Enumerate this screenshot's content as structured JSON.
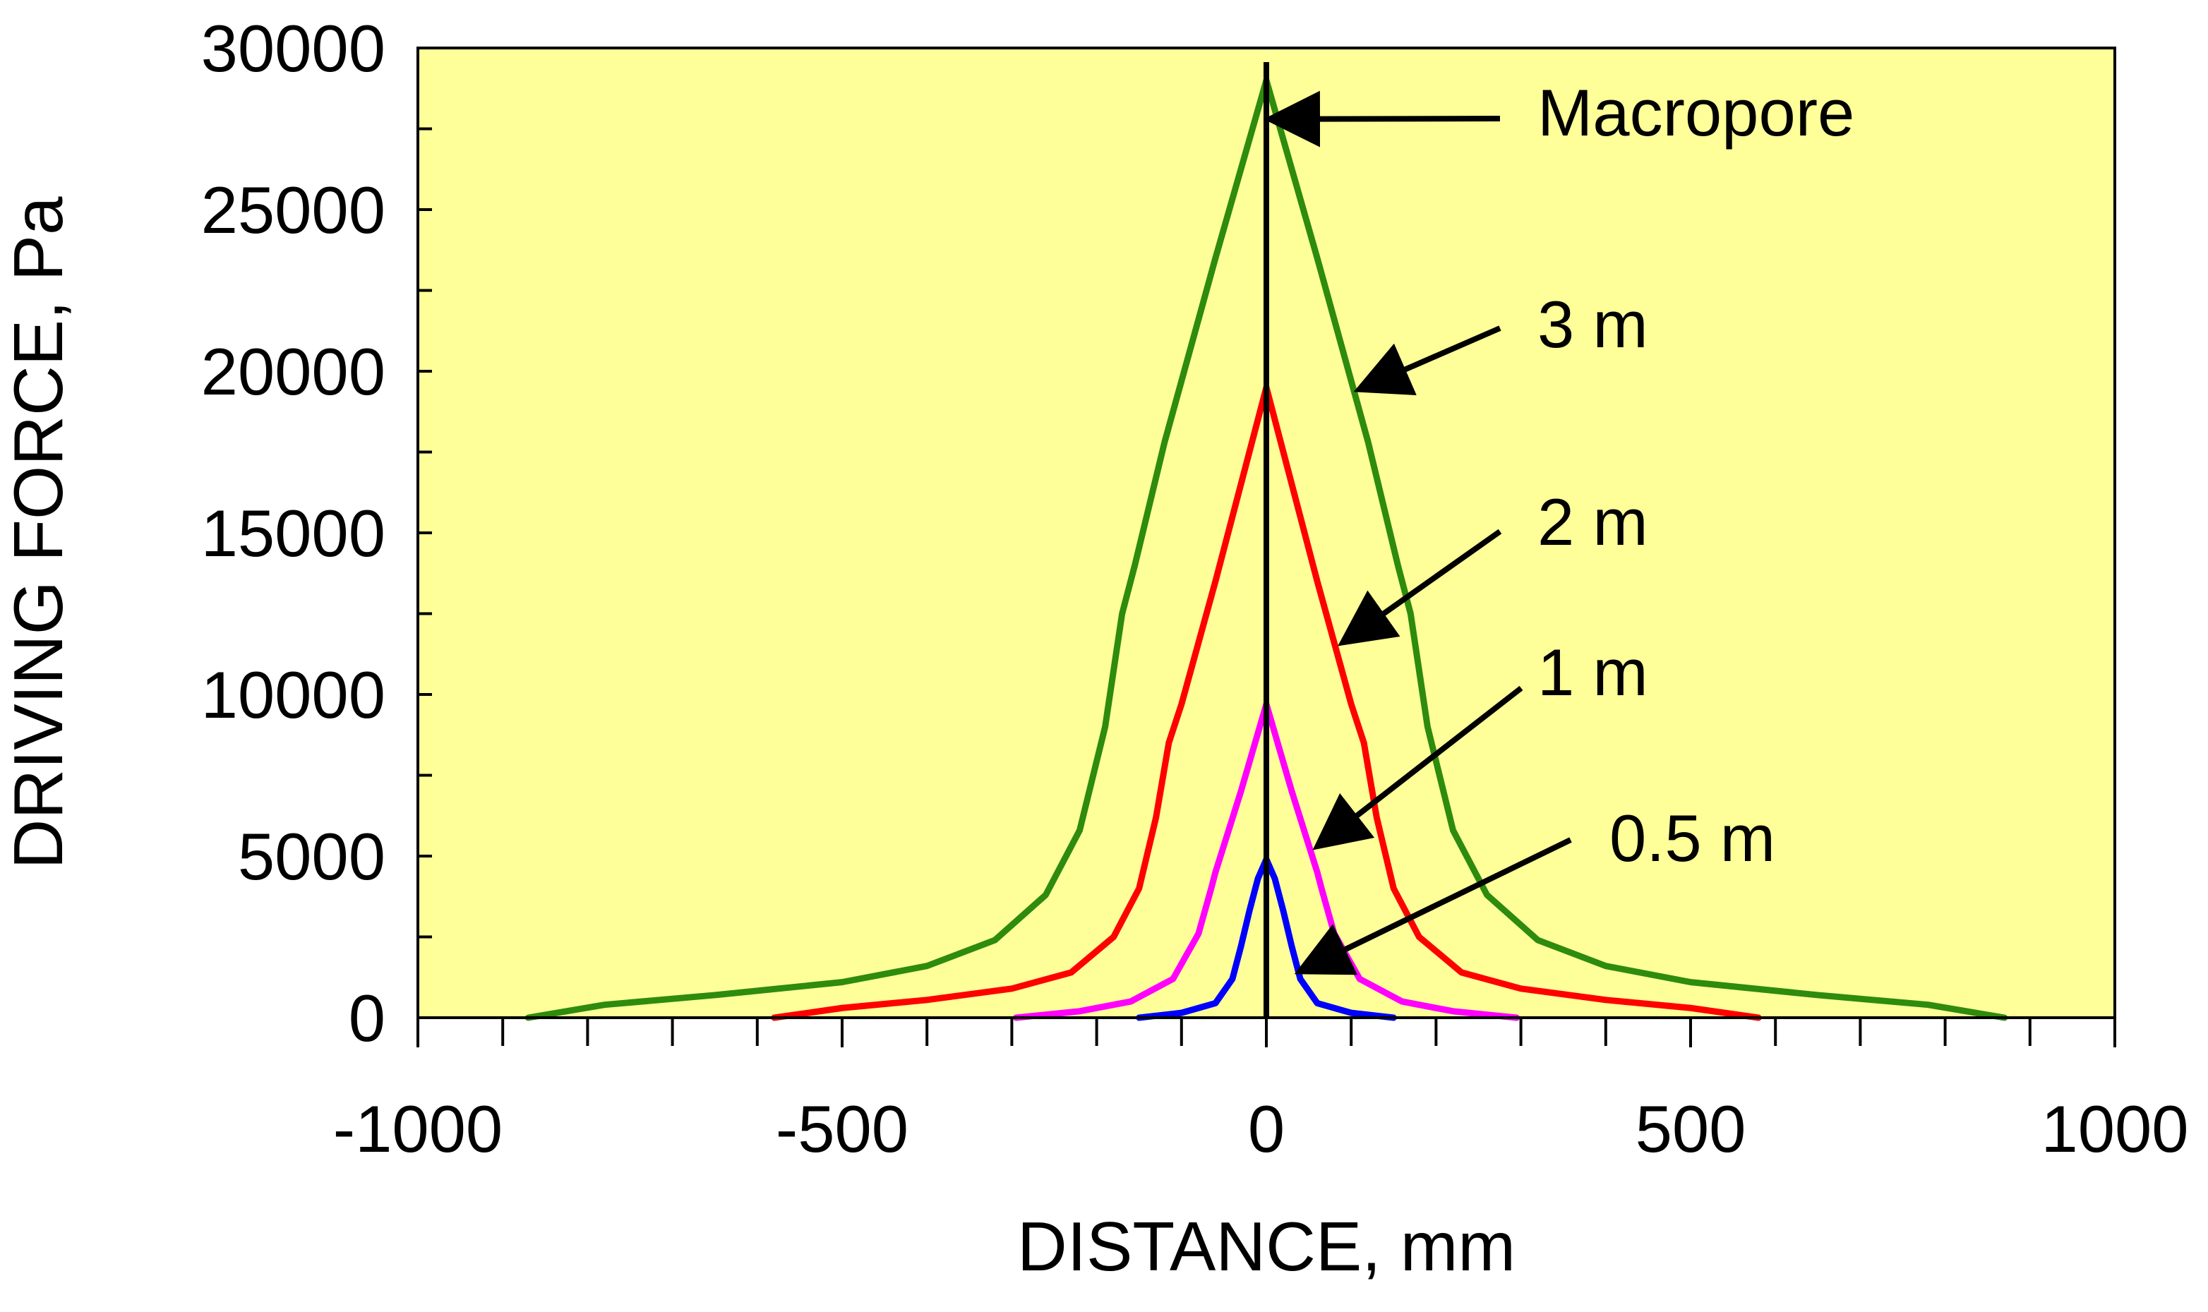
{
  "chart_data": {
    "type": "line",
    "title": "",
    "xlabel": "DISTANCE, mm",
    "ylabel": "DRIVING FORCE, Pa",
    "xlim": [
      -1000,
      1000
    ],
    "ylim": [
      0,
      30000
    ],
    "x_ticks": [
      -1000,
      -500,
      0,
      500,
      1000
    ],
    "y_ticks": [
      0,
      5000,
      10000,
      15000,
      20000,
      25000,
      30000
    ],
    "plot_background": "#FFFF99",
    "grid": false,
    "series": [
      {
        "name": "3 m",
        "color": "#2E8B0E",
        "x": [
          -870,
          -780,
          -650,
          -500,
          -400,
          -320,
          -260,
          -220,
          -190,
          -170,
          -155,
          -120,
          -60,
          0,
          60,
          120,
          155,
          170,
          190,
          220,
          260,
          320,
          400,
          500,
          650,
          780,
          870
        ],
        "y": [
          0,
          400,
          700,
          1100,
          1600,
          2400,
          3800,
          5800,
          9000,
          12500,
          14000,
          17800,
          23500,
          29000,
          23500,
          17800,
          14000,
          12500,
          9000,
          5800,
          3800,
          2400,
          1600,
          1100,
          700,
          400,
          0
        ]
      },
      {
        "name": "2 m",
        "color": "#FF0000",
        "x": [
          -580,
          -500,
          -400,
          -300,
          -230,
          -180,
          -150,
          -130,
          -115,
          -100,
          -60,
          0,
          60,
          100,
          115,
          130,
          150,
          180,
          230,
          300,
          400,
          500,
          580
        ],
        "y": [
          0,
          300,
          550,
          900,
          1400,
          2500,
          4000,
          6200,
          8500,
          9700,
          13500,
          19500,
          13500,
          9700,
          8500,
          6200,
          4000,
          2500,
          1400,
          900,
          550,
          300,
          0
        ]
      },
      {
        "name": "1 m",
        "color": "#FF00FF",
        "x": [
          -295,
          -220,
          -160,
          -110,
          -80,
          -65,
          -60,
          -30,
          0,
          30,
          60,
          65,
          80,
          110,
          160,
          220,
          295
        ],
        "y": [
          0,
          200,
          500,
          1200,
          2600,
          4000,
          4500,
          7000,
          9700,
          7000,
          4500,
          4000,
          2600,
          1200,
          500,
          200,
          0
        ]
      },
      {
        "name": "0.5 m",
        "color": "#0000FF",
        "x": [
          -150,
          -100,
          -60,
          -40,
          -30,
          -20,
          -10,
          0,
          10,
          20,
          30,
          40,
          60,
          100,
          150
        ],
        "y": [
          0,
          150,
          450,
          1200,
          2200,
          3300,
          4300,
          4900,
          4300,
          3300,
          2200,
          1200,
          450,
          150,
          0
        ]
      }
    ],
    "vertical_line": {
      "label": "Macropore",
      "x": 0,
      "color": "#000000"
    },
    "annotations": [
      {
        "text": "Macropore",
        "points_to": {
          "x": 0,
          "y": 27800
        }
      },
      {
        "text": "3 m",
        "points_to": {
          "x": 115,
          "y": 19500
        }
      },
      {
        "text": "2 m",
        "points_to": {
          "x": 95,
          "y": 11700
        }
      },
      {
        "text": "1 m",
        "points_to": {
          "x": 65,
          "y": 5400
        }
      },
      {
        "text": "0.5 m",
        "points_to": {
          "x": 45,
          "y": 1500
        }
      }
    ]
  }
}
